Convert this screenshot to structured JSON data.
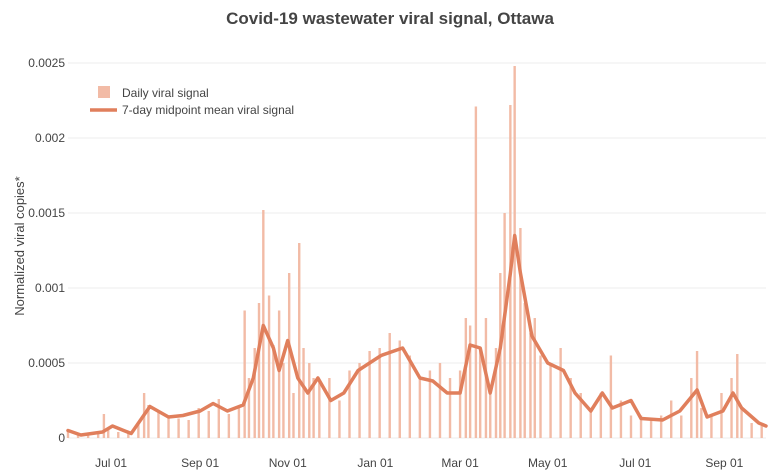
{
  "chart_data": {
    "type": "bar",
    "title": "Covid-19 wastewater viral signal, Ottawa",
    "xlabel": "",
    "ylabel": "Normalized viral copies*",
    "ylim": [
      0,
      0.0026
    ],
    "xlim": [
      "2020-06-01",
      "2021-09-30"
    ],
    "x_ticks": [
      {
        "date": "2020-07-01",
        "label": "Jul 01"
      },
      {
        "date": "2020-09-01",
        "label": "Sep 01"
      },
      {
        "date": "2020-11-01",
        "label": "Nov 01"
      },
      {
        "date": "2021-01-01",
        "label": "Jan 01"
      },
      {
        "date": "2021-03-01",
        "label": "Mar 01"
      },
      {
        "date": "2021-05-01",
        "label": "May 01"
      },
      {
        "date": "2021-07-01",
        "label": "Jul 01"
      },
      {
        "date": "2021-09-01",
        "label": "Sep 01"
      }
    ],
    "y_ticks": [
      {
        "value": 0,
        "label": "0"
      },
      {
        "value": 0.0005,
        "label": "0.0005"
      },
      {
        "value": 0.001,
        "label": "0.001"
      },
      {
        "value": 0.0015,
        "label": "0.0015"
      },
      {
        "value": 0.002,
        "label": "0.002"
      },
      {
        "value": 0.0025,
        "label": "0.0025"
      }
    ],
    "grid": "horizontal",
    "legend_position": "top-left",
    "colors": {
      "daily": "#f2bba6",
      "mean": "#e07f5c"
    },
    "series": [
      {
        "name": "Daily viral signal",
        "type": "bar",
        "points": [
          [
            "2020-06-01",
            4e-05
          ],
          [
            "2020-06-08",
            2e-05
          ],
          [
            "2020-06-15",
            3e-05
          ],
          [
            "2020-06-22",
            4e-05
          ],
          [
            "2020-06-26",
            0.00016
          ],
          [
            "2020-06-29",
            6e-05
          ],
          [
            "2020-07-06",
            4e-05
          ],
          [
            "2020-07-13",
            3e-05
          ],
          [
            "2020-07-20",
            9e-05
          ],
          [
            "2020-07-24",
            0.0003
          ],
          [
            "2020-07-27",
            0.00022
          ],
          [
            "2020-08-03",
            0.00018
          ],
          [
            "2020-08-10",
            0.00015
          ],
          [
            "2020-08-17",
            0.00013
          ],
          [
            "2020-08-24",
            0.00012
          ],
          [
            "2020-08-31",
            0.0002
          ],
          [
            "2020-09-07",
            0.00018
          ],
          [
            "2020-09-14",
            0.00026
          ],
          [
            "2020-09-21",
            0.00016
          ],
          [
            "2020-09-28",
            0.0002
          ],
          [
            "2020-10-02",
            0.00085
          ],
          [
            "2020-10-05",
            0.0004
          ],
          [
            "2020-10-09",
            0.0006
          ],
          [
            "2020-10-12",
            0.0009
          ],
          [
            "2020-10-15",
            0.00152
          ],
          [
            "2020-10-19",
            0.00095
          ],
          [
            "2020-10-22",
            0.00062
          ],
          [
            "2020-10-26",
            0.00085
          ],
          [
            "2020-10-29",
            0.0005
          ],
          [
            "2020-11-02",
            0.0011
          ],
          [
            "2020-11-05",
            0.0003
          ],
          [
            "2020-11-09",
            0.0013
          ],
          [
            "2020-11-12",
            0.0006
          ],
          [
            "2020-11-16",
            0.0005
          ],
          [
            "2020-11-19",
            0.0004
          ],
          [
            "2020-11-23",
            0.00038
          ],
          [
            "2020-11-30",
            0.0004
          ],
          [
            "2020-12-07",
            0.00025
          ],
          [
            "2020-12-14",
            0.00045
          ],
          [
            "2020-12-21",
            0.0005
          ],
          [
            "2020-12-28",
            0.00058
          ],
          [
            "2021-01-04",
            0.0006
          ],
          [
            "2021-01-11",
            0.0007
          ],
          [
            "2021-01-18",
            0.00065
          ],
          [
            "2021-01-25",
            0.00055
          ],
          [
            "2021-02-01",
            0.0004
          ],
          [
            "2021-02-08",
            0.00045
          ],
          [
            "2021-02-15",
            0.0005
          ],
          [
            "2021-02-22",
            0.0004
          ],
          [
            "2021-03-01",
            0.00045
          ],
          [
            "2021-03-05",
            0.0008
          ],
          [
            "2021-03-08",
            0.00075
          ],
          [
            "2021-03-12",
            0.00221
          ],
          [
            "2021-03-15",
            0.0006
          ],
          [
            "2021-03-19",
            0.0008
          ],
          [
            "2021-03-22",
            0.0003
          ],
          [
            "2021-03-26",
            0.0006
          ],
          [
            "2021-03-29",
            0.0011
          ],
          [
            "2021-04-01",
            0.0015
          ],
          [
            "2021-04-05",
            0.00222
          ],
          [
            "2021-04-08",
            0.00248
          ],
          [
            "2021-04-12",
            0.0014
          ],
          [
            "2021-04-15",
            0.0009
          ],
          [
            "2021-04-19",
            0.0007
          ],
          [
            "2021-04-22",
            0.0008
          ],
          [
            "2021-04-26",
            0.00055
          ],
          [
            "2021-05-03",
            0.0005
          ],
          [
            "2021-05-10",
            0.0006
          ],
          [
            "2021-05-17",
            0.0004
          ],
          [
            "2021-05-24",
            0.0003
          ],
          [
            "2021-05-31",
            0.0002
          ],
          [
            "2021-06-07",
            0.0003
          ],
          [
            "2021-06-14",
            0.00055
          ],
          [
            "2021-06-21",
            0.00025
          ],
          [
            "2021-06-28",
            0.00015
          ],
          [
            "2021-07-05",
            0.00015
          ],
          [
            "2021-07-12",
            0.00012
          ],
          [
            "2021-07-19",
            0.00015
          ],
          [
            "2021-07-26",
            0.00025
          ],
          [
            "2021-08-02",
            0.00015
          ],
          [
            "2021-08-09",
            0.0004
          ],
          [
            "2021-08-13",
            0.00058
          ],
          [
            "2021-08-16",
            0.0002
          ],
          [
            "2021-08-23",
            0.00015
          ],
          [
            "2021-08-30",
            0.0003
          ],
          [
            "2021-09-06",
            0.0004
          ],
          [
            "2021-09-10",
            0.00056
          ],
          [
            "2021-09-13",
            0.0002
          ],
          [
            "2021-09-20",
            0.0001
          ],
          [
            "2021-09-27",
            8e-05
          ]
        ]
      },
      {
        "name": "7-day midpoint mean viral signal",
        "type": "line",
        "points": [
          [
            "2020-06-01",
            5e-05
          ],
          [
            "2020-06-10",
            2e-05
          ],
          [
            "2020-06-25",
            4e-05
          ],
          [
            "2020-07-02",
            8e-05
          ],
          [
            "2020-07-15",
            3e-05
          ],
          [
            "2020-07-28",
            0.00021
          ],
          [
            "2020-08-10",
            0.00014
          ],
          [
            "2020-08-20",
            0.00015
          ],
          [
            "2020-09-01",
            0.00018
          ],
          [
            "2020-09-10",
            0.00023
          ],
          [
            "2020-09-20",
            0.00018
          ],
          [
            "2020-10-01",
            0.00022
          ],
          [
            "2020-10-08",
            0.0004
          ],
          [
            "2020-10-15",
            0.00075
          ],
          [
            "2020-10-22",
            0.0006
          ],
          [
            "2020-10-26",
            0.00045
          ],
          [
            "2020-11-01",
            0.00065
          ],
          [
            "2020-11-08",
            0.0004
          ],
          [
            "2020-11-15",
            0.0003
          ],
          [
            "2020-11-22",
            0.0004
          ],
          [
            "2020-12-01",
            0.00025
          ],
          [
            "2020-12-10",
            0.0003
          ],
          [
            "2020-12-20",
            0.00045
          ],
          [
            "2021-01-05",
            0.00055
          ],
          [
            "2021-01-20",
            0.0006
          ],
          [
            "2021-02-01",
            0.0004
          ],
          [
            "2021-02-10",
            0.00038
          ],
          [
            "2021-02-20",
            0.0003
          ],
          [
            "2021-03-01",
            0.0003
          ],
          [
            "2021-03-08",
            0.00062
          ],
          [
            "2021-03-15",
            0.0006
          ],
          [
            "2021-03-22",
            0.0003
          ],
          [
            "2021-03-29",
            0.0006
          ],
          [
            "2021-04-05",
            0.0011
          ],
          [
            "2021-04-08",
            0.00135
          ],
          [
            "2021-04-12",
            0.0011
          ],
          [
            "2021-04-20",
            0.00068
          ],
          [
            "2021-05-01",
            0.0005
          ],
          [
            "2021-05-12",
            0.00045
          ],
          [
            "2021-05-20",
            0.0003
          ],
          [
            "2021-05-31",
            0.00018
          ],
          [
            "2021-06-08",
            0.0003
          ],
          [
            "2021-06-15",
            0.0002
          ],
          [
            "2021-06-28",
            0.00025
          ],
          [
            "2021-07-05",
            0.00013
          ],
          [
            "2021-07-20",
            0.00012
          ],
          [
            "2021-08-01",
            0.00018
          ],
          [
            "2021-08-13",
            0.00032
          ],
          [
            "2021-08-20",
            0.00014
          ],
          [
            "2021-08-31",
            0.00018
          ],
          [
            "2021-09-07",
            0.0003
          ],
          [
            "2021-09-13",
            0.0002
          ],
          [
            "2021-09-25",
            0.0001
          ],
          [
            "2021-09-30",
            8e-05
          ]
        ]
      }
    ]
  }
}
